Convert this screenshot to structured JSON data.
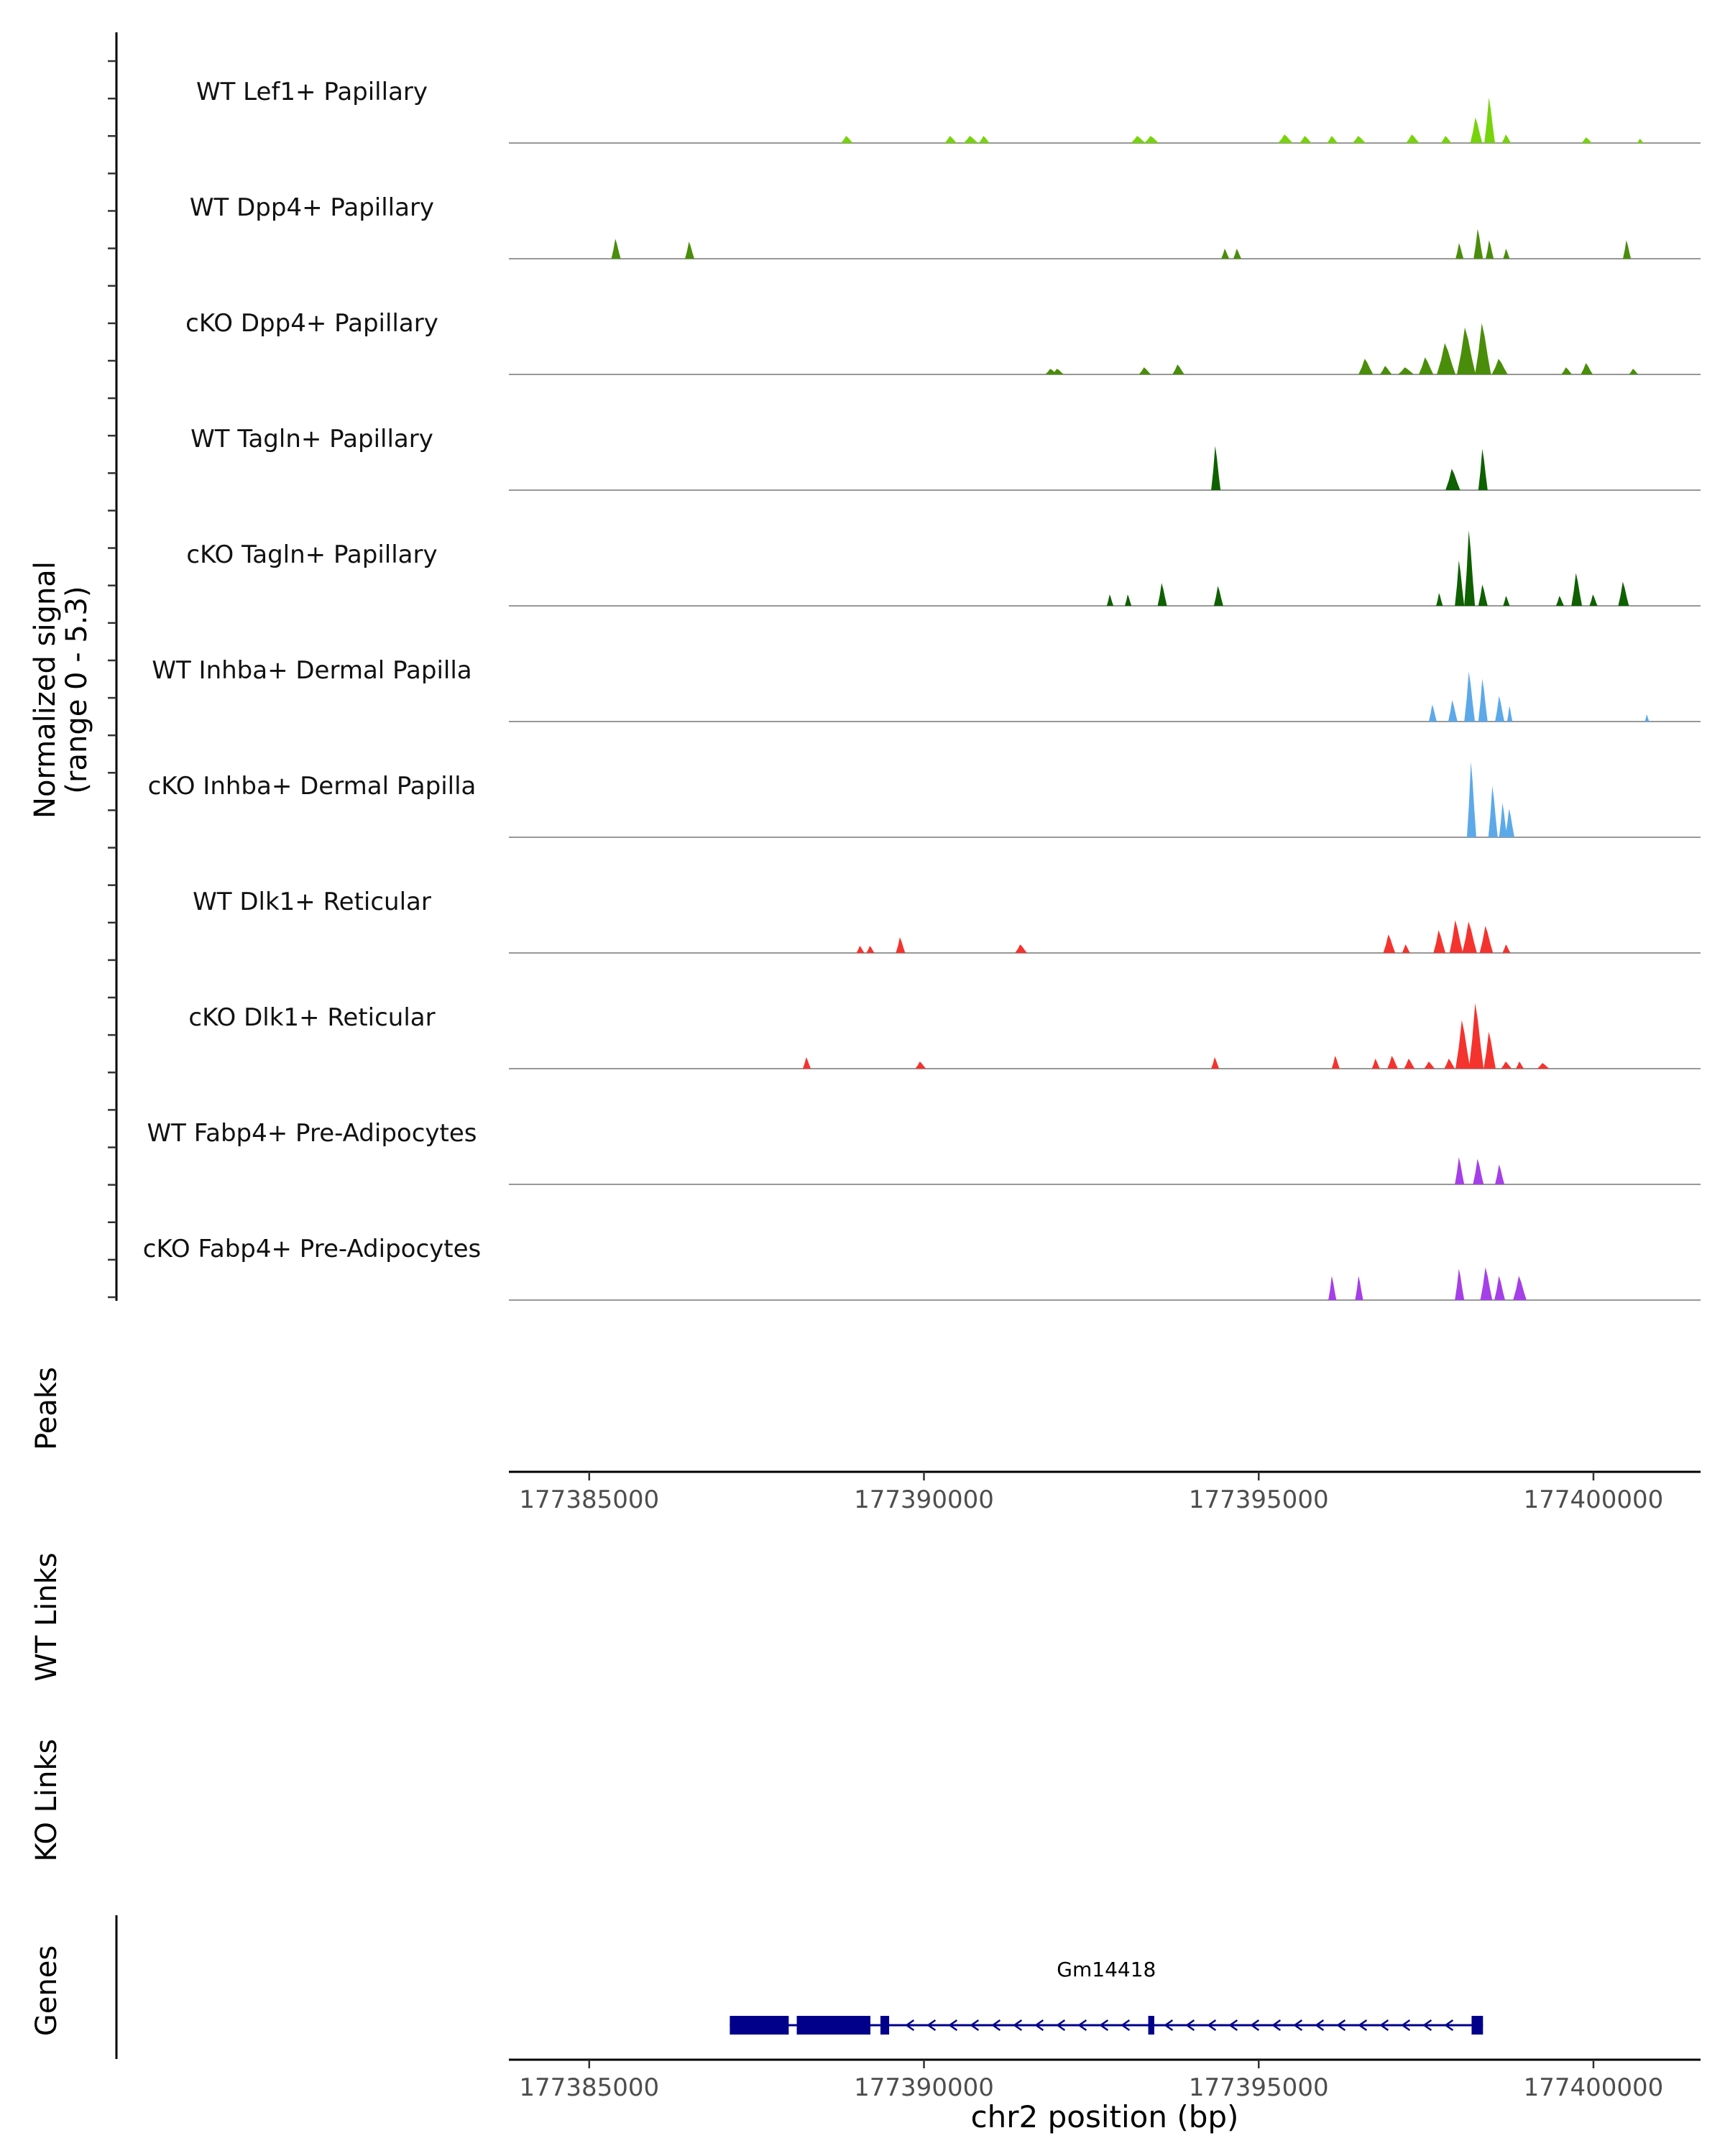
{
  "chart_data": {
    "type": "area",
    "title": "",
    "chromosome": "chr2",
    "xlabel": "chr2 position (bp)",
    "xlim": [
      177383800,
      177401600
    ],
    "x_ticks": [
      177385000,
      177390000,
      177395000,
      177400000
    ],
    "x_tick_labels": [
      "177385000",
      "177390000",
      "177395000",
      "177400000"
    ],
    "ylabel_line1": "Normalized signal",
    "ylabel_line2": "(range 0 - 5.3)",
    "ylim": [
      0,
      5.3
    ],
    "peaks_label": "Peaks",
    "wt_links_label": "WT Links",
    "ko_links_label": "KO Links",
    "genes_label": "Genes",
    "tracks": [
      {
        "name": "WT Lef1+ Papillary",
        "color": "#77d30c",
        "peaks": [
          [
            177388850,
            90,
            0.5
          ],
          [
            177390400,
            90,
            0.5
          ],
          [
            177390700,
            110,
            0.5
          ],
          [
            177390900,
            80,
            0.5
          ],
          [
            177393200,
            110,
            0.5
          ],
          [
            177393400,
            110,
            0.5
          ],
          [
            177395400,
            110,
            0.6
          ],
          [
            177395700,
            90,
            0.5
          ],
          [
            177396100,
            80,
            0.5
          ],
          [
            177396500,
            100,
            0.5
          ],
          [
            177397300,
            100,
            0.6
          ],
          [
            177397800,
            80,
            0.5
          ],
          [
            177398250,
            90,
            1.8
          ],
          [
            177398450,
            80,
            3.2
          ],
          [
            177398700,
            70,
            0.6
          ],
          [
            177399900,
            80,
            0.4
          ],
          [
            177400700,
            50,
            0.3
          ]
        ]
      },
      {
        "name": "WT Dpp4+ Papillary",
        "color": "#4a8d0a",
        "peaks": [
          [
            177385400,
            70,
            1.4
          ],
          [
            177386500,
            70,
            1.2
          ],
          [
            177394500,
            60,
            0.7
          ],
          [
            177394680,
            60,
            0.7
          ],
          [
            177398000,
            60,
            1.1
          ],
          [
            177398280,
            70,
            2.1
          ],
          [
            177398450,
            60,
            1.3
          ],
          [
            177398700,
            50,
            0.7
          ],
          [
            177400500,
            60,
            1.3
          ]
        ]
      },
      {
        "name": "cKO Dpp4+ Papillary",
        "color": "#4a8d0a",
        "peaks": [
          [
            177391900,
            90,
            0.4
          ],
          [
            177392000,
            90,
            0.4
          ],
          [
            177393300,
            90,
            0.5
          ],
          [
            177393800,
            90,
            0.7
          ],
          [
            177396600,
            110,
            1.1
          ],
          [
            177396900,
            90,
            0.6
          ],
          [
            177397200,
            120,
            0.5
          ],
          [
            177397500,
            110,
            1.2
          ],
          [
            177397800,
            140,
            2.2
          ],
          [
            177398100,
            140,
            3.3
          ],
          [
            177398350,
            120,
            3.6
          ],
          [
            177398600,
            120,
            1.1
          ],
          [
            177399600,
            80,
            0.5
          ],
          [
            177399900,
            90,
            0.8
          ],
          [
            177400600,
            70,
            0.4
          ]
        ]
      },
      {
        "name": "WT Tagln+ Papillary",
        "color": "#0e6000",
        "peaks": [
          [
            177394360,
            70,
            3.1
          ],
          [
            177397900,
            110,
            1.5
          ],
          [
            177398350,
            70,
            2.9
          ]
        ]
      },
      {
        "name": "cKO Tagln+ Papillary",
        "color": "#0e6000",
        "peaks": [
          [
            177392780,
            50,
            0.8
          ],
          [
            177393050,
            50,
            0.8
          ],
          [
            177393560,
            70,
            1.6
          ],
          [
            177394400,
            70,
            1.4
          ],
          [
            177397700,
            50,
            0.9
          ],
          [
            177398000,
            70,
            3.2
          ],
          [
            177398150,
            80,
            5.3
          ],
          [
            177398350,
            70,
            1.5
          ],
          [
            177398700,
            50,
            0.7
          ],
          [
            177399500,
            60,
            0.7
          ],
          [
            177399750,
            80,
            2.3
          ],
          [
            177400000,
            60,
            0.8
          ],
          [
            177400450,
            80,
            1.7
          ]
        ]
      },
      {
        "name": "WT Inhba+ Dermal Papilla",
        "color": "#5ca9e9",
        "peaks": [
          [
            177397600,
            60,
            1.2
          ],
          [
            177398150,
            80,
            3.5
          ],
          [
            177398350,
            70,
            3.0
          ],
          [
            177398600,
            70,
            1.8
          ],
          [
            177397900,
            70,
            1.5
          ],
          [
            177398750,
            40,
            1.1
          ],
          [
            177400800,
            20,
            0.5
          ]
        ]
      },
      {
        "name": "cKO Inhba+ Dermal Papilla",
        "color": "#5ca9e9",
        "peaks": [
          [
            177398180,
            70,
            5.3
          ],
          [
            177398500,
            70,
            3.6
          ],
          [
            177398650,
            60,
            2.4
          ],
          [
            177398750,
            70,
            2.0
          ]
        ]
      },
      {
        "name": "WT Dlk1+ Reticular",
        "color": "#f4332f",
        "peaks": [
          [
            177389050,
            60,
            0.5
          ],
          [
            177389200,
            60,
            0.5
          ],
          [
            177389650,
            70,
            1.1
          ],
          [
            177391450,
            90,
            0.6
          ],
          [
            177396950,
            90,
            1.3
          ],
          [
            177397200,
            60,
            0.6
          ],
          [
            177397700,
            90,
            1.6
          ],
          [
            177397950,
            100,
            2.3
          ],
          [
            177398150,
            110,
            2.2
          ],
          [
            177398400,
            100,
            1.9
          ],
          [
            177398700,
            60,
            0.6
          ]
        ]
      },
      {
        "name": "cKO Dlk1+ Reticular",
        "color": "#f4332f",
        "peaks": [
          [
            177388250,
            60,
            0.8
          ],
          [
            177389950,
            80,
            0.5
          ],
          [
            177394350,
            60,
            0.8
          ],
          [
            177396150,
            60,
            0.9
          ],
          [
            177396750,
            60,
            0.7
          ],
          [
            177397000,
            80,
            0.9
          ],
          [
            177397250,
            80,
            0.7
          ],
          [
            177397550,
            80,
            0.5
          ],
          [
            177397850,
            80,
            0.7
          ],
          [
            177398050,
            110,
            3.4
          ],
          [
            177398250,
            110,
            4.6
          ],
          [
            177398450,
            90,
            2.6
          ],
          [
            177398700,
            80,
            0.5
          ],
          [
            177398900,
            60,
            0.5
          ],
          [
            177399250,
            90,
            0.4
          ]
        ]
      },
      {
        "name": "WT Fabp4+ Pre-Adipocytes",
        "color": "#a53fe8",
        "peaks": [
          [
            177398000,
            70,
            1.9
          ],
          [
            177398280,
            80,
            1.8
          ],
          [
            177398600,
            70,
            1.4
          ]
        ]
      },
      {
        "name": "cKO Fabp4+ Pre-Adipocytes",
        "color": "#a53fe8",
        "peaks": [
          [
            177396100,
            60,
            1.7
          ],
          [
            177396500,
            60,
            1.7
          ],
          [
            177398000,
            70,
            2.2
          ],
          [
            177398400,
            90,
            2.3
          ],
          [
            177398600,
            80,
            1.7
          ],
          [
            177398900,
            100,
            1.7
          ]
        ]
      }
    ],
    "genes": [
      {
        "name": "Gm14418",
        "strand": "-",
        "start": 177387100,
        "end": 177398350,
        "exons": [
          [
            177387100,
            177387980
          ],
          [
            177388100,
            177389200
          ],
          [
            177389350,
            177389480
          ],
          [
            177393350,
            177393440
          ],
          [
            177398180,
            177398350
          ]
        ]
      }
    ]
  }
}
